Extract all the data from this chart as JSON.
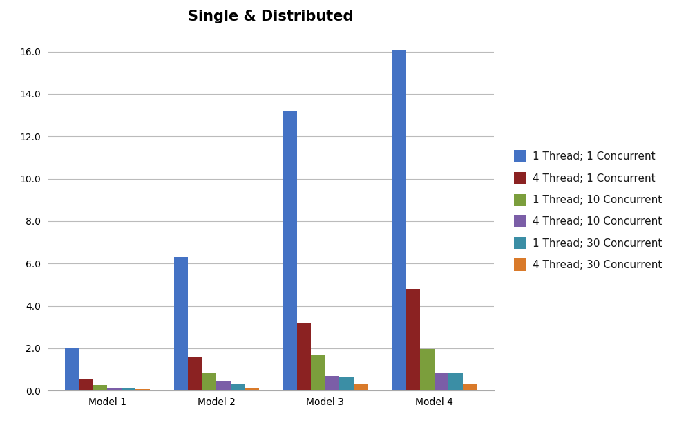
{
  "title": "Single & Distributed",
  "categories": [
    "Model 1",
    "Model 2",
    "Model 3",
    "Model 4"
  ],
  "series": [
    {
      "label": "1 Thread; 1 Concurrent",
      "color": "#4472C4",
      "values": [
        2.0,
        6.3,
        13.2,
        16.1
      ]
    },
    {
      "label": "4 Thread; 1 Concurrent",
      "color": "#8B2222",
      "values": [
        0.55,
        1.6,
        3.2,
        4.8
      ]
    },
    {
      "label": "1 Thread; 10 Concurrent",
      "color": "#7B9E3C",
      "values": [
        0.28,
        0.82,
        1.7,
        1.97
      ]
    },
    {
      "label": "4 Thread; 10 Concurrent",
      "color": "#7B5EA7",
      "values": [
        0.13,
        0.42,
        0.68,
        0.83
      ]
    },
    {
      "label": "1 Thread; 30 Concurrent",
      "color": "#3B8EA5",
      "values": [
        0.14,
        0.33,
        0.62,
        0.82
      ]
    },
    {
      "label": "4 Thread; 30 Concurrent",
      "color": "#D97A2A",
      "values": [
        0.07,
        0.15,
        0.31,
        0.31
      ]
    }
  ],
  "ylim": [
    0,
    17
  ],
  "yticks": [
    0.0,
    2.0,
    4.0,
    6.0,
    8.0,
    10.0,
    12.0,
    14.0,
    16.0
  ],
  "background_color": "#FFFFFF",
  "grid_color": "#BBBBBB",
  "title_fontsize": 15,
  "legend_fontsize": 11,
  "tick_fontsize": 10,
  "bar_width": 0.13,
  "figsize": [
    9.8,
    6.28
  ],
  "dpi": 100
}
